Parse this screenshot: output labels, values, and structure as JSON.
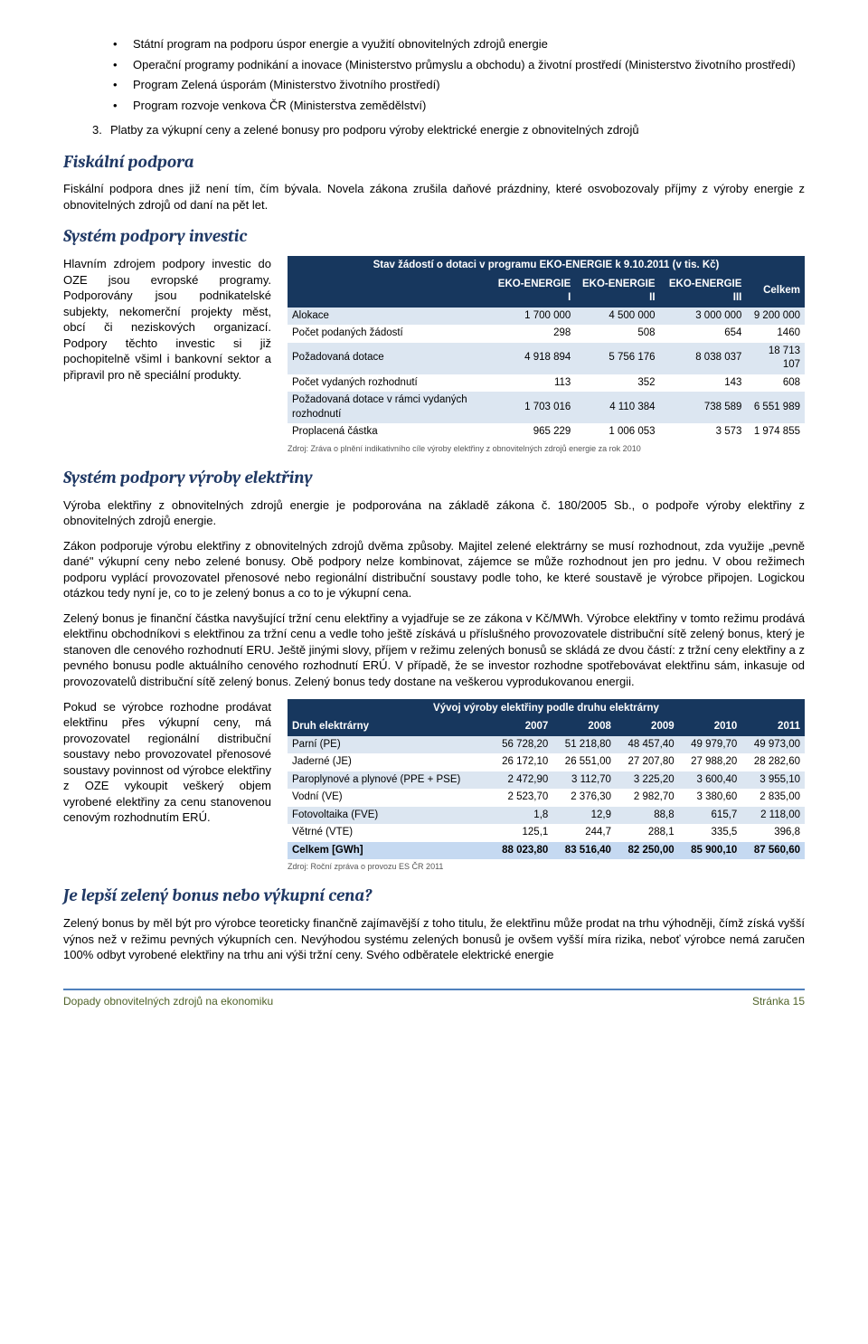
{
  "bullets": [
    "Státní program na podporu úspor energie a využití obnovitelných zdrojů energie",
    "Operační programy podnikání a inovace (Ministerstvo průmyslu a obchodu) a životní prostředí (Ministerstvo životního prostředí)",
    "Program Zelená úsporám (Ministerstvo životního prostředí)",
    "Program rozvoje venkova ČR (Ministerstva zemědělství)"
  ],
  "numbered": {
    "num": "3.",
    "text": "Platby za výkupní ceny a zelené bonusy pro podporu výroby elektrické energie z obnovitelných zdrojů"
  },
  "h_fiskalni": "Fiskální podpora",
  "p_fiskalni": "Fiskální podpora dnes již není tím, čím bývala. Novela zákona zrušila daňové prázdniny, které osvobozovaly příjmy z výroby energie z obnovitelných zdrojů od daní na pět let.",
  "h_investic": "Systém podpory investic",
  "p_investic": "Hlavním zdrojem podpory investic do OZE jsou evropské programy. Podporovány jsou podnikatelské subjekty, nekomerční projekty měst, obcí či neziskových organizací. Podpory těchto investic si již pochopitelně všiml i bankovní sektor a připravil pro ně speciální produkty.",
  "table1": {
    "title": "Stav žádostí o dotaci v programu EKO-ENERGIE k 9.10.2011 (v tis. Kč)",
    "headers": [
      "",
      "EKO-ENERGIE I",
      "EKO-ENERGIE II",
      "EKO-ENERGIE III",
      "Celkem"
    ],
    "rows": [
      [
        "Alokace",
        "1 700 000",
        "4 500 000",
        "3 000 000",
        "9 200 000"
      ],
      [
        "Počet podaných žádostí",
        "298",
        "508",
        "654",
        "1460"
      ],
      [
        "Požadovaná dotace",
        "4 918 894",
        "5 756 176",
        "8 038 037",
        "18 713 107"
      ],
      [
        "Počet vydaných rozhodnutí",
        "113",
        "352",
        "143",
        "608"
      ],
      [
        "Požadovaná dotace v rámci vydaných rozhodnutí",
        "1 703 016",
        "4 110 384",
        "738 589",
        "6 551 989"
      ],
      [
        "Proplacená částka",
        "965 229",
        "1 006 053",
        "3 573",
        "1 974 855"
      ]
    ],
    "source": "Zdroj: Zráva o plnění indikativního cíle výroby elektřiny z obnovitelných zdrojů energie za rok 2010"
  },
  "h_vyroby": "Systém podpory výroby elektřiny",
  "p_vyroby_1": "Výroba elektřiny z obnovitelných zdrojů energie je podporována na základě zákona č. 180/2005 Sb., o podpoře výroby elektřiny z obnovitelných zdrojů energie.",
  "p_vyroby_2": "Zákon podporuje výrobu elektřiny z obnovitelných zdrojů dvěma způsoby. Majitel zelené elektrárny se musí rozhodnout, zda využije „pevně dané\" výkupní ceny nebo zelené bonusy. Obě podpory nelze kombinovat, zájemce se může rozhodnout jen pro jednu. V obou režimech podporu vyplácí provozovatel přenosové nebo regionální distribuční soustavy podle toho, ke které soustavě je výrobce připojen. Logickou otázkou tedy nyní je, co to je zelený bonus a co to je výkupní cena.",
  "p_vyroby_3": "Zelený bonus je finanční částka navyšující tržní cenu elektřiny a vyjadřuje se ze zákona v Kč/MWh. Výrobce elektřiny v tomto režimu prodává elektřinu obchodníkovi s elektřinou za tržní cenu a vedle toho ještě získává u příslušného provozovatele distribuční sítě zelený bonus, který je stanoven dle cenového rozhodnutí ERU. Ještě jinými slovy, příjem v režimu zelených bonusů se skládá ze dvou částí: z tržní ceny elektřiny a z pevného bonusu podle aktuálního cenového rozhodnutí ERÚ. V případě, že se investor rozhodne spotřebovávat elektřinu sám, inkasuje od provozovatelů distribuční sítě zelený bonus. Zelený bonus tedy dostane na veškerou vyprodukovanou energii.",
  "p_vyroby_4": "Pokud se výrobce rozhodne prodávat elektřinu přes výkupní ceny, má provozovatel regionální distribuční soustavy nebo provozovatel přenosové soustavy povinnost od výrobce elektřiny z OZE vykoupit veškerý objem vyrobené elektřiny za cenu stanovenou cenovým rozhodnutím ERÚ.",
  "table2": {
    "title": "Vývoj výroby elektřiny podle druhu elektrárny",
    "headers": [
      "Druh elektrárny",
      "2007",
      "2008",
      "2009",
      "2010",
      "2011"
    ],
    "rows": [
      [
        "Parní (PE)",
        "56 728,20",
        "51 218,80",
        "48 457,40",
        "49 979,70",
        "49 973,00"
      ],
      [
        "Jaderné (JE)",
        "26 172,10",
        "26 551,00",
        "27 207,80",
        "27 988,20",
        "28 282,60"
      ],
      [
        "Paroplynové a plynové (PPE + PSE)",
        "2 472,90",
        "3 112,70",
        "3 225,20",
        "3 600,40",
        "3 955,10"
      ],
      [
        "Vodní (VE)",
        "2 523,70",
        "2 376,30",
        "2 982,70",
        "3 380,60",
        "2 835,00"
      ],
      [
        "Fotovoltaika (FVE)",
        "1,8",
        "12,9",
        "88,8",
        "615,7",
        "2 118,00"
      ],
      [
        "Větrné (VTE)",
        "125,1",
        "244,7",
        "288,1",
        "335,5",
        "396,8"
      ],
      [
        "Celkem [GWh]",
        "88 023,80",
        "83 516,40",
        "82 250,00",
        "85 900,10",
        "87 560,60"
      ]
    ],
    "source": "Zdroj: Roční zpráva o provozu ES ČR 2011"
  },
  "h_lepsi": "Je lepší zelený bonus nebo výkupní cena?",
  "p_lepsi": "Zelený bonus by měl být pro výrobce teoreticky finančně zajímavější z toho titulu, že elektřinu může prodat na trhu výhodněji, čímž získá vyšší výnos než v režimu pevných výkupních cen. Nevýhodou systému zelených bonusů je ovšem vyšší míra rizika, neboť výrobce nemá zaručen 100% odbyt vyrobené elektřiny na trhu ani výši tržní ceny. Svého odběratele elektrické energie",
  "footer": {
    "left": "Dopady obnovitelných zdrojů na ekonomiku",
    "right": "Stránka 15"
  },
  "colors": {
    "heading": "#1f3864",
    "tbl_dark": "#17375e",
    "tbl_odd": "#dce6f1",
    "tbl_hdr": "#c5d9f1",
    "footer_border": "#4f81bd",
    "footer_text": "#4f6228"
  }
}
